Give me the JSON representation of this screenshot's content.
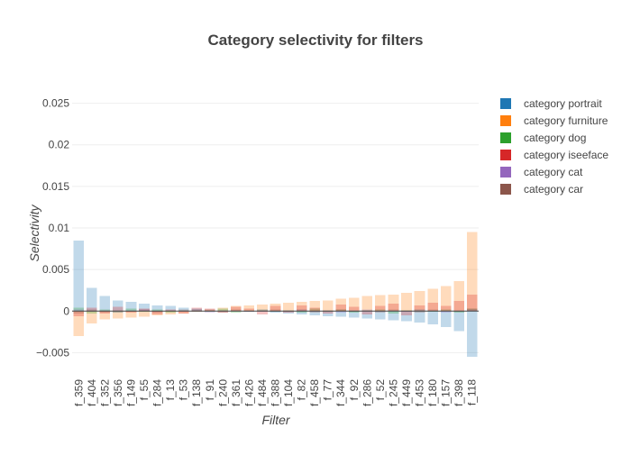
{
  "chart_data": {
    "type": "bar",
    "barmode": "overlay",
    "title": "Category selectivity for filters",
    "xlabel": "Filter",
    "ylabel": "Selectivity",
    "ylim": [
      -0.0068,
      0.0255
    ],
    "yticks": [
      -0.005,
      0,
      0.005,
      0.01,
      0.015,
      0.02,
      0.025
    ],
    "ytick_labels": [
      "−0.005",
      "0",
      "0.005",
      "0.01",
      "0.015",
      "0.02",
      "0.025"
    ],
    "grid": true,
    "legend_position": "right",
    "categories": [
      "f_359",
      "f_404",
      "f_352",
      "f_356",
      "f_149",
      "f_55",
      "f_284",
      "f_13",
      "f_53",
      "f_138",
      "f_91",
      "f_240",
      "f_361",
      "f_426",
      "f_484",
      "f_388",
      "f_104",
      "f_82",
      "f_458",
      "f_77",
      "f_344",
      "f_92",
      "f_286",
      "f_52",
      "f_245",
      "f_449",
      "f_453",
      "f_180",
      "f_157",
      "f_398",
      "f_118"
    ],
    "series": [
      {
        "name": "category portrait",
        "color": "#1f77b4",
        "values": [
          0.0085,
          0.0028,
          0.0018,
          0.0013,
          0.0011,
          0.0009,
          0.0007,
          0.0006,
          0.0004,
          0.0003,
          0.0002,
          0.0001,
          0.0001,
          0.0,
          -0.0001,
          -0.0002,
          -0.0003,
          -0.0004,
          -0.0005,
          -0.0006,
          -0.0007,
          -0.0008,
          -0.0009,
          -0.001,
          -0.0011,
          -0.0012,
          -0.0014,
          -0.0016,
          -0.0019,
          -0.0024,
          -0.0055
        ]
      },
      {
        "name": "category furniture",
        "color": "#ff7f0e",
        "values": [
          -0.003,
          -0.0015,
          -0.001,
          -0.0009,
          -0.0008,
          -0.0007,
          -0.0005,
          -0.0004,
          -0.0003,
          -0.0001,
          0.0002,
          0.0004,
          0.0006,
          0.0007,
          0.0008,
          0.0009,
          0.001,
          0.0011,
          0.0012,
          0.0013,
          0.0015,
          0.0016,
          0.0018,
          0.0019,
          0.002,
          0.0022,
          0.0024,
          0.0027,
          0.003,
          0.0036,
          0.0095
        ]
      },
      {
        "name": "category dog",
        "color": "#2ca02c",
        "values": [
          0.0004,
          -0.0003,
          0.0002,
          -0.0002,
          0.0003,
          -0.0001,
          0.0002,
          -0.0002,
          0.0001,
          0.0002,
          -0.0001,
          0.0003,
          -0.0002,
          0.0001,
          0.0002,
          -0.0001,
          0.0001,
          -0.0002,
          0.0003,
          -0.0001,
          0.0002,
          -0.0002,
          0.0001,
          0.0002,
          -0.0003,
          0.0001,
          0.0002,
          -0.0001,
          0.0002,
          -0.0002,
          0.0003
        ]
      },
      {
        "name": "category iseeface",
        "color": "#d62728",
        "values": [
          -0.0006,
          0.0004,
          -0.0003,
          0.0005,
          -0.0002,
          0.0003,
          -0.0004,
          0.0002,
          -0.0003,
          0.0004,
          0.0003,
          -0.0002,
          0.0005,
          0.0003,
          -0.0004,
          0.0006,
          -0.0002,
          0.0007,
          0.0004,
          -0.0003,
          0.0008,
          0.0005,
          -0.0004,
          0.0006,
          0.0009,
          -0.0005,
          0.0007,
          0.001,
          0.0006,
          0.0012,
          0.002
        ]
      },
      {
        "name": "category cat",
        "color": "#9467bd",
        "values": [
          0.0002,
          -0.0001,
          0.0001,
          -0.0002,
          0.0001,
          0.0002,
          -0.0001,
          0.0001,
          -0.0001,
          0.0002,
          -0.0002,
          0.0001,
          0.0001,
          -0.0001,
          0.0002,
          -0.0001,
          0.0001,
          0.0002,
          -0.0001,
          0.0001,
          -0.0002,
          0.0001,
          0.0002,
          -0.0001,
          0.0001,
          -0.0001,
          0.0002,
          0.0001,
          -0.0002,
          0.0001,
          0.0002
        ]
      },
      {
        "name": "category car",
        "color": "#8c564b",
        "values": [
          -0.0003,
          0.0002,
          -0.0002,
          0.0001,
          -0.0001,
          0.0002,
          -0.0002,
          0.0001,
          0.0002,
          -0.0001,
          0.0001,
          -0.0002,
          0.0002,
          -0.0001,
          0.0001,
          0.0002,
          -0.0001,
          0.0002,
          -0.0002,
          0.0001,
          0.0002,
          -0.0001,
          0.0001,
          -0.0002,
          0.0002,
          0.0001,
          -0.0002,
          0.0002,
          0.0001,
          -0.0001,
          0.0003
        ]
      }
    ]
  }
}
